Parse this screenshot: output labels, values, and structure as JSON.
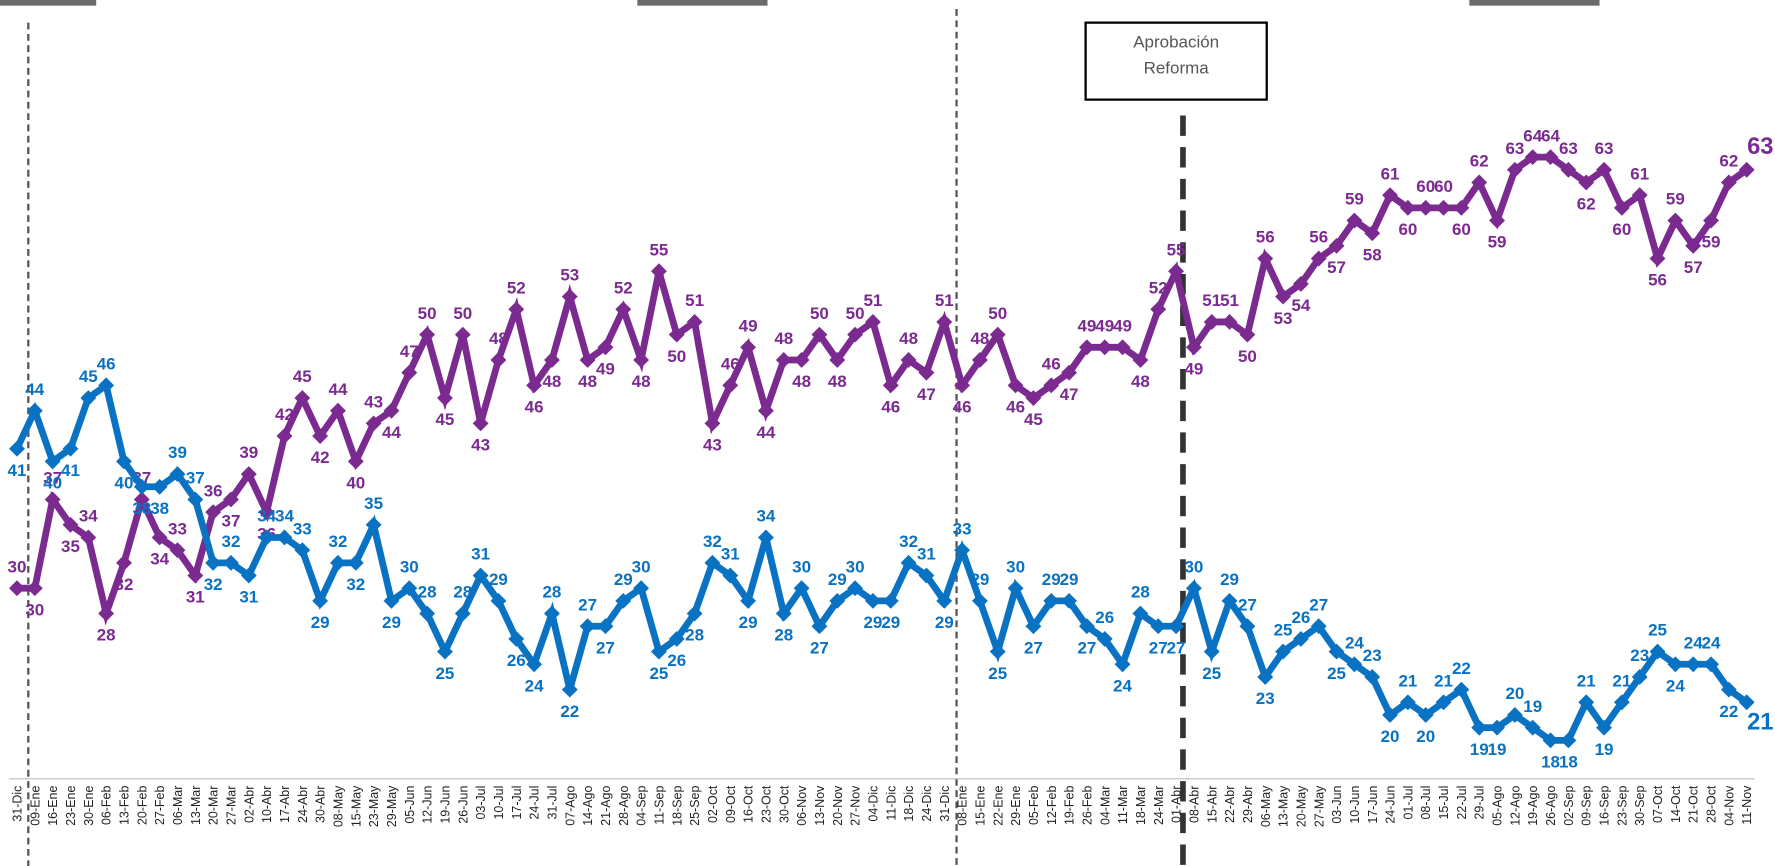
{
  "chart_data": {
    "type": "line",
    "categories": [
      "31-Dic",
      "09-Ene",
      "16-Ene",
      "23-Ene",
      "30-Ene",
      "06-Feb",
      "13-Feb",
      "20-Feb",
      "27-Feb",
      "06-Mar",
      "13-Mar",
      "20-Mar",
      "27-Mar",
      "02-Abr",
      "10-Abr",
      "17-Abr",
      "24-Abr",
      "30-Abr",
      "08-May",
      "15-May",
      "23-May",
      "29-May",
      "05-Jun",
      "12-Jun",
      "19-Jun",
      "26-Jun",
      "03-Jul",
      "10-Jul",
      "17-Jul",
      "24-Jul",
      "31-Jul",
      "07-Ago",
      "14-Ago",
      "21-Ago",
      "28-Ago",
      "04-Sep",
      "11-Sep",
      "18-Sep",
      "25-Sep",
      "02-Oct",
      "09-Oct",
      "16-Oct",
      "23-Oct",
      "30-Oct",
      "06-Nov",
      "13-Nov",
      "20-Nov",
      "27-Nov",
      "04-Dic",
      "11-Dic",
      "18-Dic",
      "24-Dic",
      "31-Dic",
      "08-Ene",
      "15-Ene",
      "22-Ene",
      "29-Ene",
      "05-Feb",
      "12-Feb",
      "19-Feb",
      "26-Feb",
      "04-Mar",
      "11-Mar",
      "18-Mar",
      "24-Mar",
      "01-Abr",
      "08-Abr",
      "15-Abr",
      "22-Abr",
      "29-Abr",
      "06-May",
      "13-May",
      "20-May",
      "27-May",
      "03-Jun",
      "10-Jun",
      "17-Jun",
      "24-Jun",
      "01-Jul",
      "08-Jul",
      "15-Jul",
      "22-Jul",
      "29-Jul",
      "05-Ago",
      "12-Ago",
      "19-Ago",
      "26-Ago",
      "02-Sep",
      "09-Sep",
      "16-Sep",
      "23-Sep",
      "30-Sep",
      "07-Oct",
      "14-Oct",
      "21-Oct",
      "28-Oct",
      "04-Nov",
      "11-Nov"
    ],
    "series": [
      {
        "color": "#7b2a90",
        "values": [
          30,
          30,
          37,
          35,
          34,
          28,
          32,
          37,
          34,
          33,
          31,
          36,
          37,
          39,
          36,
          42,
          45,
          42,
          44,
          40,
          43,
          44,
          47,
          50,
          45,
          50,
          43,
          48,
          52,
          46,
          48,
          53,
          48,
          49,
          52,
          48,
          55,
          50,
          51,
          43,
          46,
          49,
          44,
          48,
          48,
          50,
          48,
          50,
          51,
          46,
          48,
          47,
          51,
          46,
          48,
          50,
          46,
          45,
          46,
          47,
          49,
          49,
          49,
          48,
          52,
          55,
          49,
          51,
          51,
          50,
          56,
          53,
          54,
          56,
          57,
          59,
          58,
          61,
          60,
          60,
          60,
          60,
          62,
          59,
          63,
          64,
          64,
          63,
          62,
          63,
          60,
          61,
          56,
          59,
          57,
          59,
          62,
          63
        ]
      },
      {
        "color": "#0a72c2",
        "values": [
          41,
          44,
          40,
          41,
          45,
          46,
          40,
          38,
          38,
          39,
          37,
          32,
          32,
          31,
          34,
          34,
          33,
          29,
          32,
          32,
          35,
          29,
          30,
          28,
          25,
          28,
          31,
          29,
          26,
          24,
          28,
          22,
          27,
          27,
          29,
          30,
          25,
          26,
          28,
          32,
          31,
          29,
          34,
          28,
          30,
          27,
          29,
          30,
          29,
          29,
          32,
          31,
          29,
          33,
          29,
          25,
          30,
          27,
          29,
          29,
          27,
          26,
          24,
          28,
          27,
          27,
          30,
          25,
          29,
          27,
          23,
          25,
          26,
          27,
          25,
          24,
          23,
          20,
          21,
          20,
          21,
          22,
          19,
          19,
          20,
          19,
          18,
          18,
          21,
          19,
          21,
          23,
          25,
          24,
          24,
          24,
          22,
          21
        ]
      }
    ],
    "ylim": [
      15,
      76
    ],
    "annotation": "Aprobación Reforma"
  }
}
